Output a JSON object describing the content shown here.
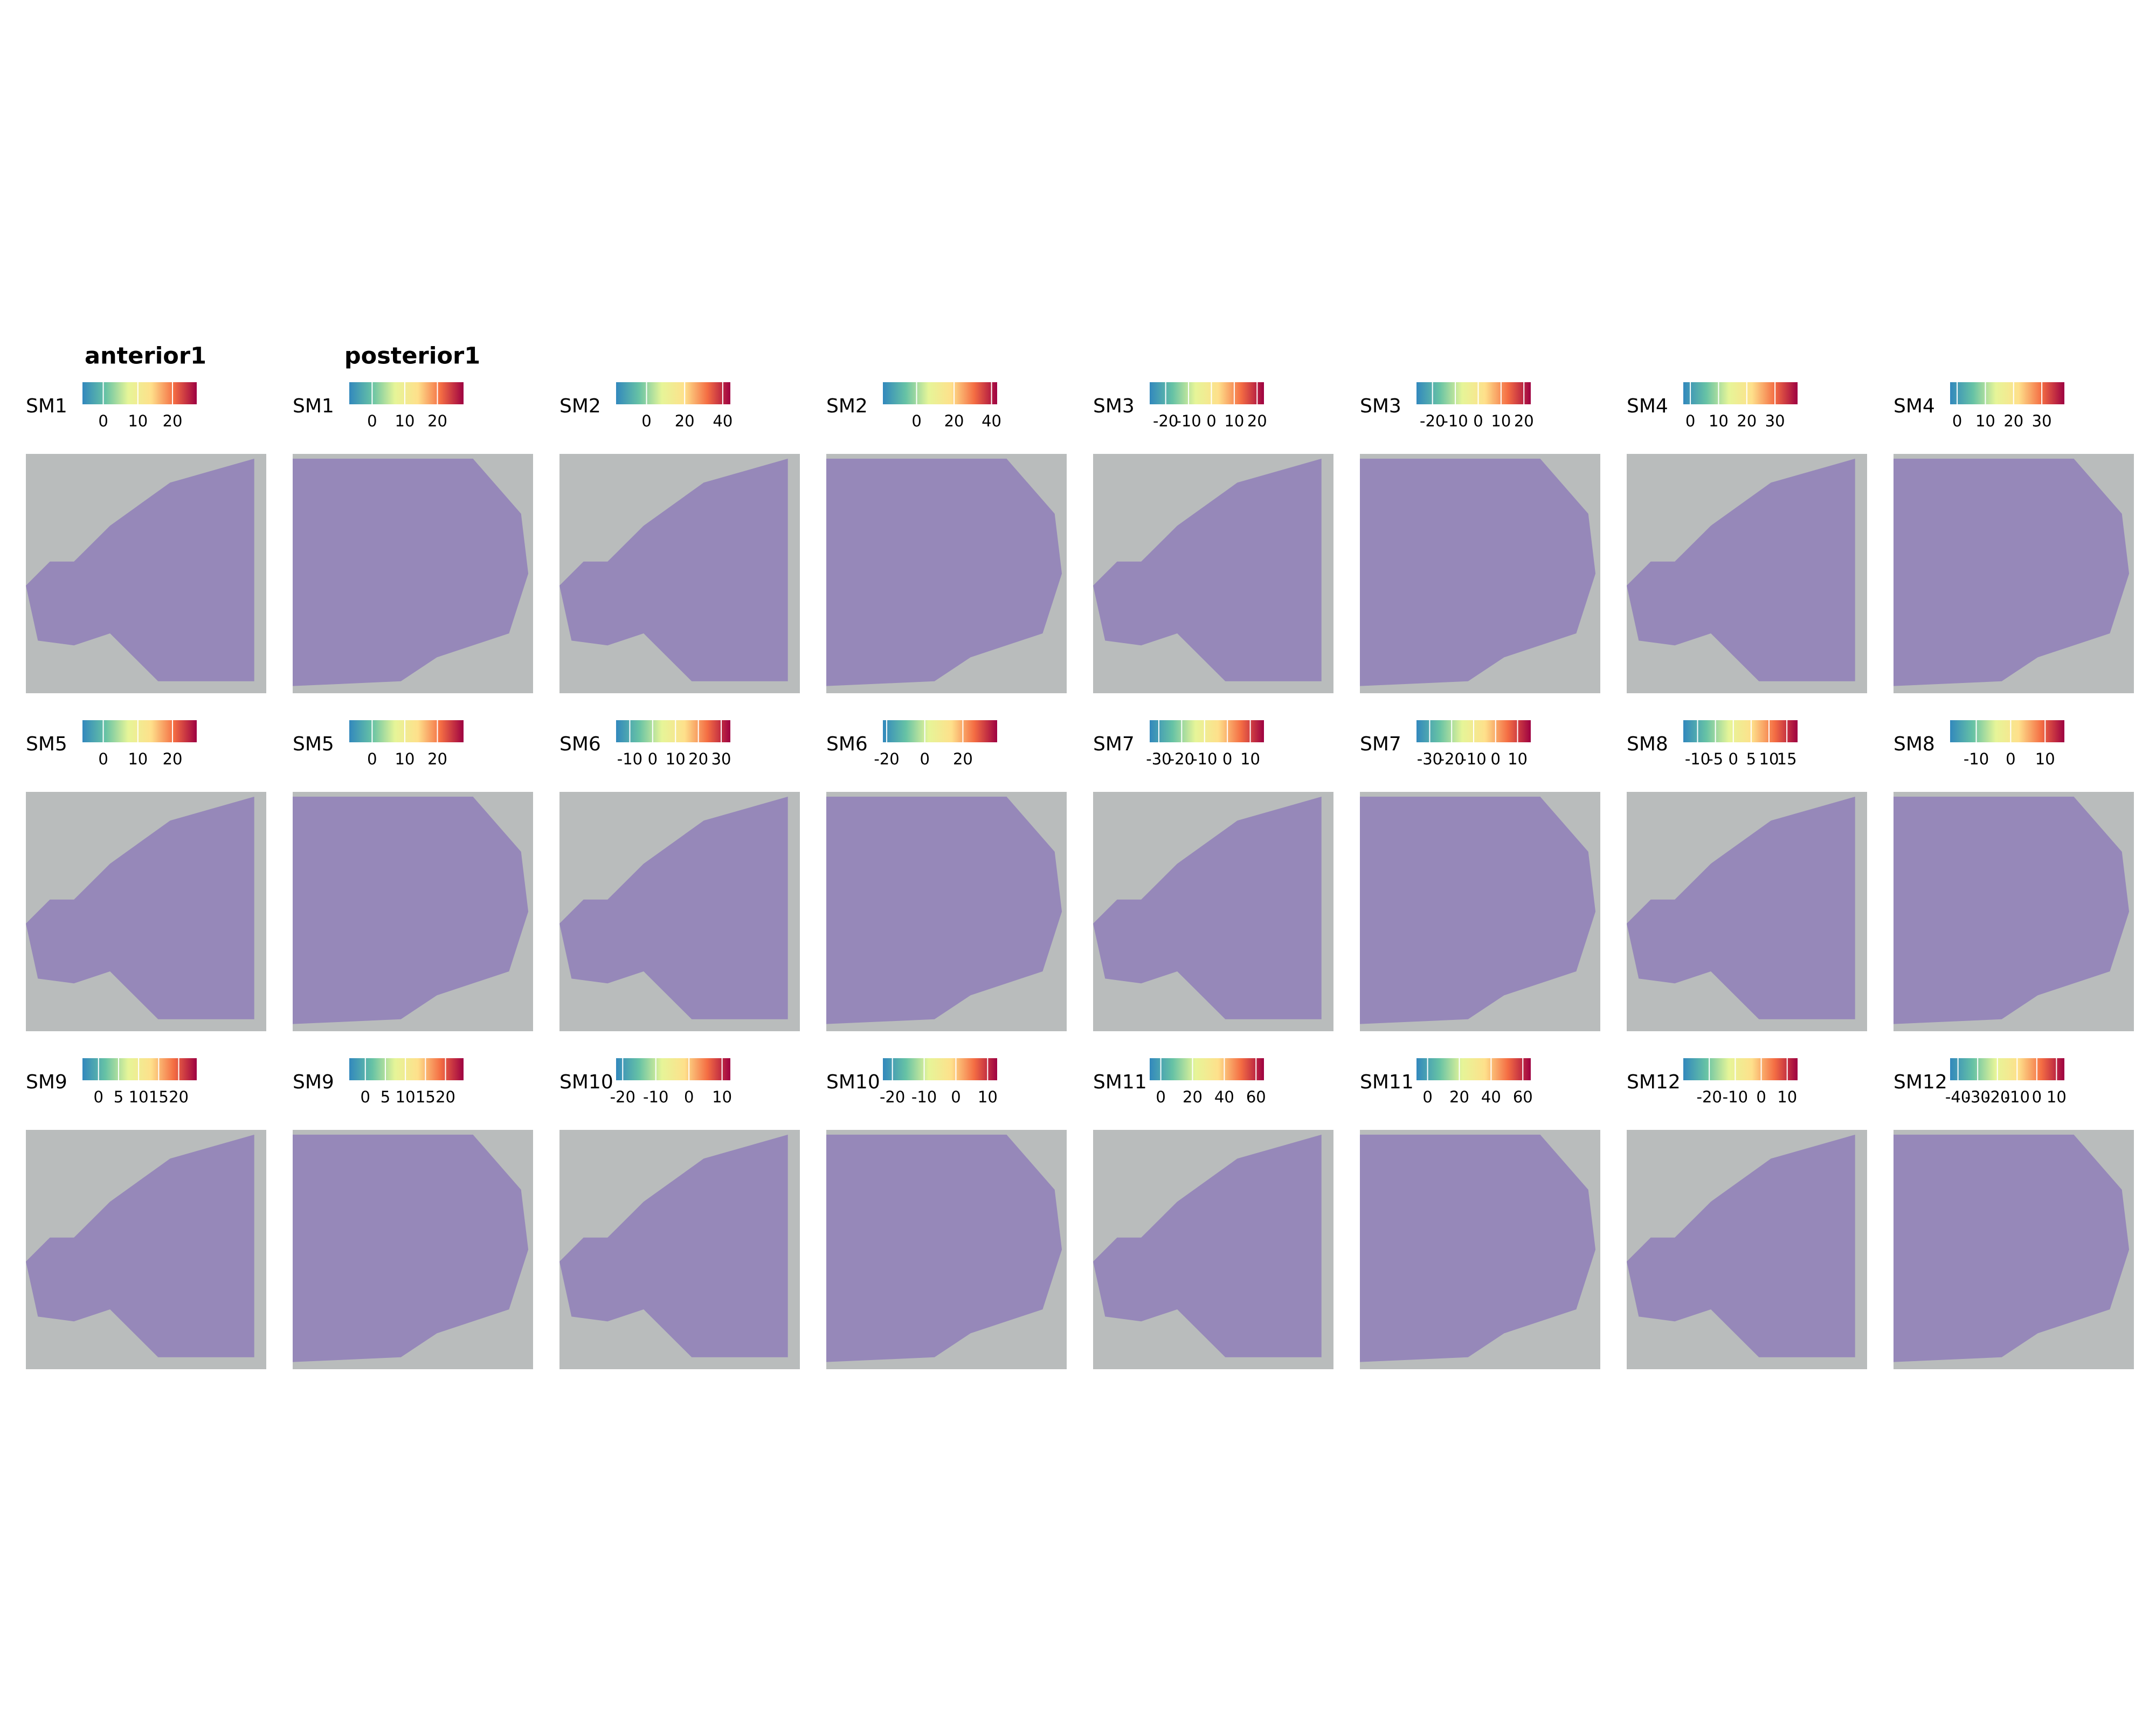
{
  "titles": [
    "anterior1",
    "posterior1"
  ],
  "panels": [
    {
      "label": "SM1",
      "lim": [
        -6,
        27
      ],
      "ticks": [
        0,
        10,
        20
      ]
    },
    {
      "label": "SM1",
      "lim": [
        -7,
        28
      ],
      "ticks": [
        0,
        10,
        20
      ]
    },
    {
      "label": "SM2",
      "lim": [
        -16,
        44
      ],
      "ticks": [
        0,
        20,
        40
      ]
    },
    {
      "label": "SM2",
      "lim": [
        -18,
        43
      ],
      "ticks": [
        0,
        20,
        40
      ]
    },
    {
      "label": "SM3",
      "lim": [
        -27,
        23
      ],
      "ticks": [
        -20,
        -10,
        0,
        10,
        20
      ]
    },
    {
      "label": "SM3",
      "lim": [
        -27,
        23
      ],
      "ticks": [
        -20,
        -10,
        0,
        10,
        20
      ]
    },
    {
      "label": "SM4",
      "lim": [
        -2.5,
        38
      ],
      "ticks": [
        0,
        10,
        20,
        30
      ]
    },
    {
      "label": "SM4",
      "lim": [
        -2.5,
        38
      ],
      "ticks": [
        0,
        10,
        20,
        30
      ]
    },
    {
      "label": "SM5",
      "lim": [
        -6,
        27
      ],
      "ticks": [
        0,
        10,
        20
      ]
    },
    {
      "label": "SM5",
      "lim": [
        -7,
        28
      ],
      "ticks": [
        0,
        10,
        20
      ]
    },
    {
      "label": "SM6",
      "lim": [
        -16,
        34
      ],
      "ticks": [
        -10,
        0,
        10,
        20,
        30
      ]
    },
    {
      "label": "SM6",
      "lim": [
        -22,
        38
      ],
      "ticks": [
        -20,
        0,
        20
      ]
    },
    {
      "label": "SM7",
      "lim": [
        -34,
        16
      ],
      "ticks": [
        -30,
        -20,
        -10,
        0,
        10
      ]
    },
    {
      "label": "SM7",
      "lim": [
        -36,
        16
      ],
      "ticks": [
        -30,
        -20,
        -10,
        0,
        10
      ]
    },
    {
      "label": "SM8",
      "lim": [
        -14,
        18
      ],
      "ticks": [
        -10,
        -5,
        0,
        5,
        10,
        15
      ]
    },
    {
      "label": "SM8",
      "lim": [
        -17.6,
        15.6
      ],
      "ticks": [
        -10,
        0,
        10
      ]
    },
    {
      "label": "SM9",
      "lim": [
        -4,
        24.5
      ],
      "ticks": [
        0,
        5,
        10,
        15,
        20
      ]
    },
    {
      "label": "SM9",
      "lim": [
        -4,
        24.5
      ],
      "ticks": [
        0,
        5,
        10,
        15,
        20
      ]
    },
    {
      "label": "SM10",
      "lim": [
        -22,
        12.5
      ],
      "ticks": [
        -20,
        -10,
        0,
        10
      ]
    },
    {
      "label": "SM10",
      "lim": [
        -23,
        13
      ],
      "ticks": [
        -20,
        -10,
        0,
        10
      ]
    },
    {
      "label": "SM11",
      "lim": [
        -7,
        65
      ],
      "ticks": [
        0,
        20,
        40,
        60
      ]
    },
    {
      "label": "SM11",
      "lim": [
        -7,
        65
      ],
      "ticks": [
        0,
        20,
        40,
        60
      ]
    },
    {
      "label": "SM12",
      "lim": [
        -30,
        14
      ],
      "ticks": [
        -20,
        -10,
        0,
        10
      ]
    },
    {
      "label": "SM12",
      "lim": [
        -44,
        14
      ],
      "ticks": [
        -40,
        -30,
        -20,
        -10,
        0,
        10
      ]
    }
  ]
}
